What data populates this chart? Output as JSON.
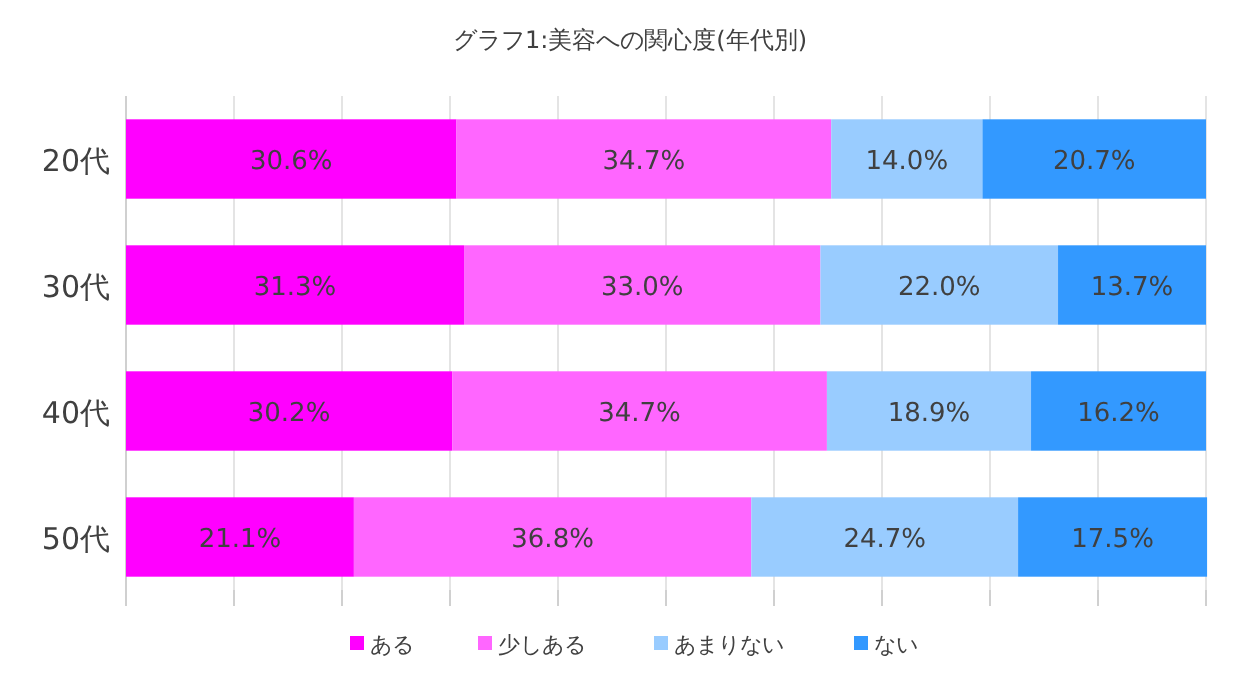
{
  "chart_data": {
    "type": "bar",
    "orientation": "horizontal",
    "stacked": true,
    "title": "グラフ1:美容への関心度(年代別)",
    "categories": [
      "20代",
      "30代",
      "40代",
      "50代"
    ],
    "series": [
      {
        "name": "ある",
        "color": "#ff00ff",
        "values": [
          30.6,
          31.3,
          30.2,
          21.1
        ],
        "value_labels": [
          "30.6%",
          "31.3%",
          "30.2%",
          "21.1%"
        ]
      },
      {
        "name": "少しある",
        "color": "#ff66ff",
        "values": [
          34.7,
          33.0,
          34.7,
          36.8
        ],
        "value_labels": [
          "34.7%",
          "33.0%",
          "34.7%",
          "36.8%"
        ]
      },
      {
        "name": "あまりない",
        "color": "#99ccff",
        "values": [
          14.0,
          22.0,
          18.9,
          24.7
        ],
        "value_labels": [
          "14.0%",
          "22.0%",
          "18.9%",
          "24.7%"
        ]
      },
      {
        "name": "ない",
        "color": "#3399ff",
        "values": [
          20.7,
          13.7,
          16.2,
          17.5
        ],
        "value_labels": [
          "20.7%",
          "13.7%",
          "16.2%",
          "17.5%"
        ]
      }
    ],
    "xlim": [
      0,
      100
    ],
    "xticks": [
      {
        "value": 0,
        "label": null
      },
      {
        "value": 10,
        "label": null
      },
      {
        "value": 20,
        "label": null
      },
      {
        "value": 30,
        "label": null
      },
      {
        "value": 40,
        "label": null
      },
      {
        "value": 50,
        "label": null
      },
      {
        "value": 60,
        "label": null
      },
      {
        "value": 70,
        "label": null
      },
      {
        "value": 80,
        "label": null
      },
      {
        "value": 90,
        "label": null
      },
      {
        "value": 100,
        "label": null
      }
    ],
    "tick_labels": "y",
    "grid": "x",
    "legend": "bottom"
  }
}
